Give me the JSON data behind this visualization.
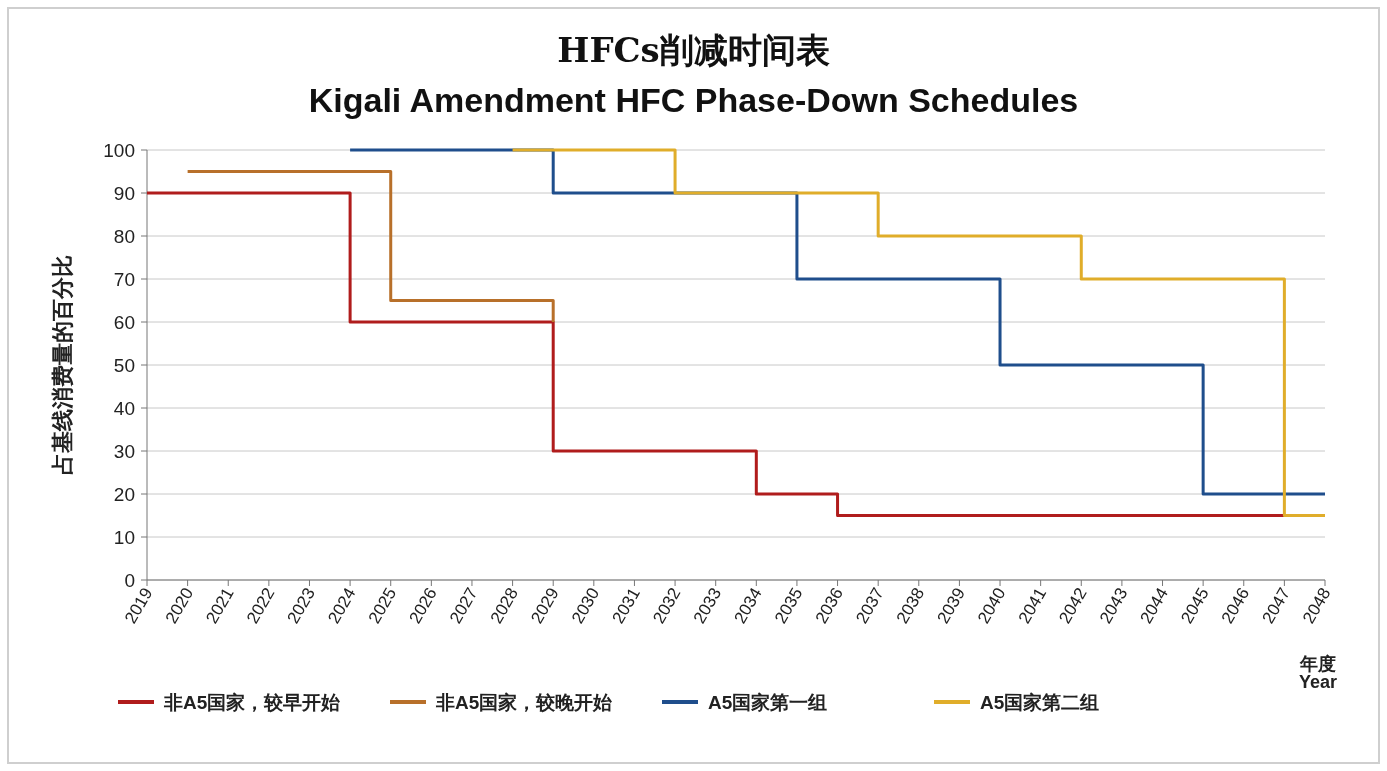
{
  "chart_data": {
    "type": "step",
    "title": "HFCs削减时间表",
    "subtitle": "Kigali Amendment HFC Phase-Down Schedules",
    "xlabel": "年度\nYear",
    "ylabel": "占基线消费量的百分比",
    "xlim": [
      2019,
      2048
    ],
    "xticks": [
      2019,
      2020,
      2021,
      2022,
      2023,
      2024,
      2025,
      2026,
      2027,
      2028,
      2029,
      2030,
      2031,
      2032,
      2033,
      2034,
      2035,
      2036,
      2037,
      2038,
      2039,
      2040,
      2041,
      2042,
      2043,
      2044,
      2045,
      2046,
      2047,
      2048
    ],
    "ylim": [
      0,
      100
    ],
    "yticks": [
      0,
      10,
      20,
      30,
      40,
      50,
      60,
      70,
      80,
      90,
      100
    ],
    "grid": "y",
    "legend": "bottom",
    "marker": "none",
    "line_style": "solid",
    "series": [
      {
        "name": "非A5国家，较早开始",
        "color": "#b01c1c",
        "x": [
          2019,
          2024,
          2029,
          2034,
          2036,
          2047
        ],
        "values": [
          90,
          60,
          30,
          20,
          15,
          15
        ]
      },
      {
        "name": "非A5国家，较晚开始",
        "color": "#b8702a",
        "x": [
          2020,
          2025,
          2029
        ],
        "values": [
          95,
          65,
          60
        ]
      },
      {
        "name": "A5国家第一组",
        "color": "#1f4e8c",
        "x": [
          2024,
          2029,
          2035,
          2040,
          2045,
          2048
        ],
        "values": [
          100,
          90,
          70,
          50,
          20,
          20
        ]
      },
      {
        "name": "A5国家第二组",
        "color": "#e0ad2a",
        "x": [
          2028,
          2032,
          2037,
          2042,
          2047,
          2048
        ],
        "values": [
          100,
          90,
          80,
          70,
          15,
          15
        ]
      }
    ]
  }
}
